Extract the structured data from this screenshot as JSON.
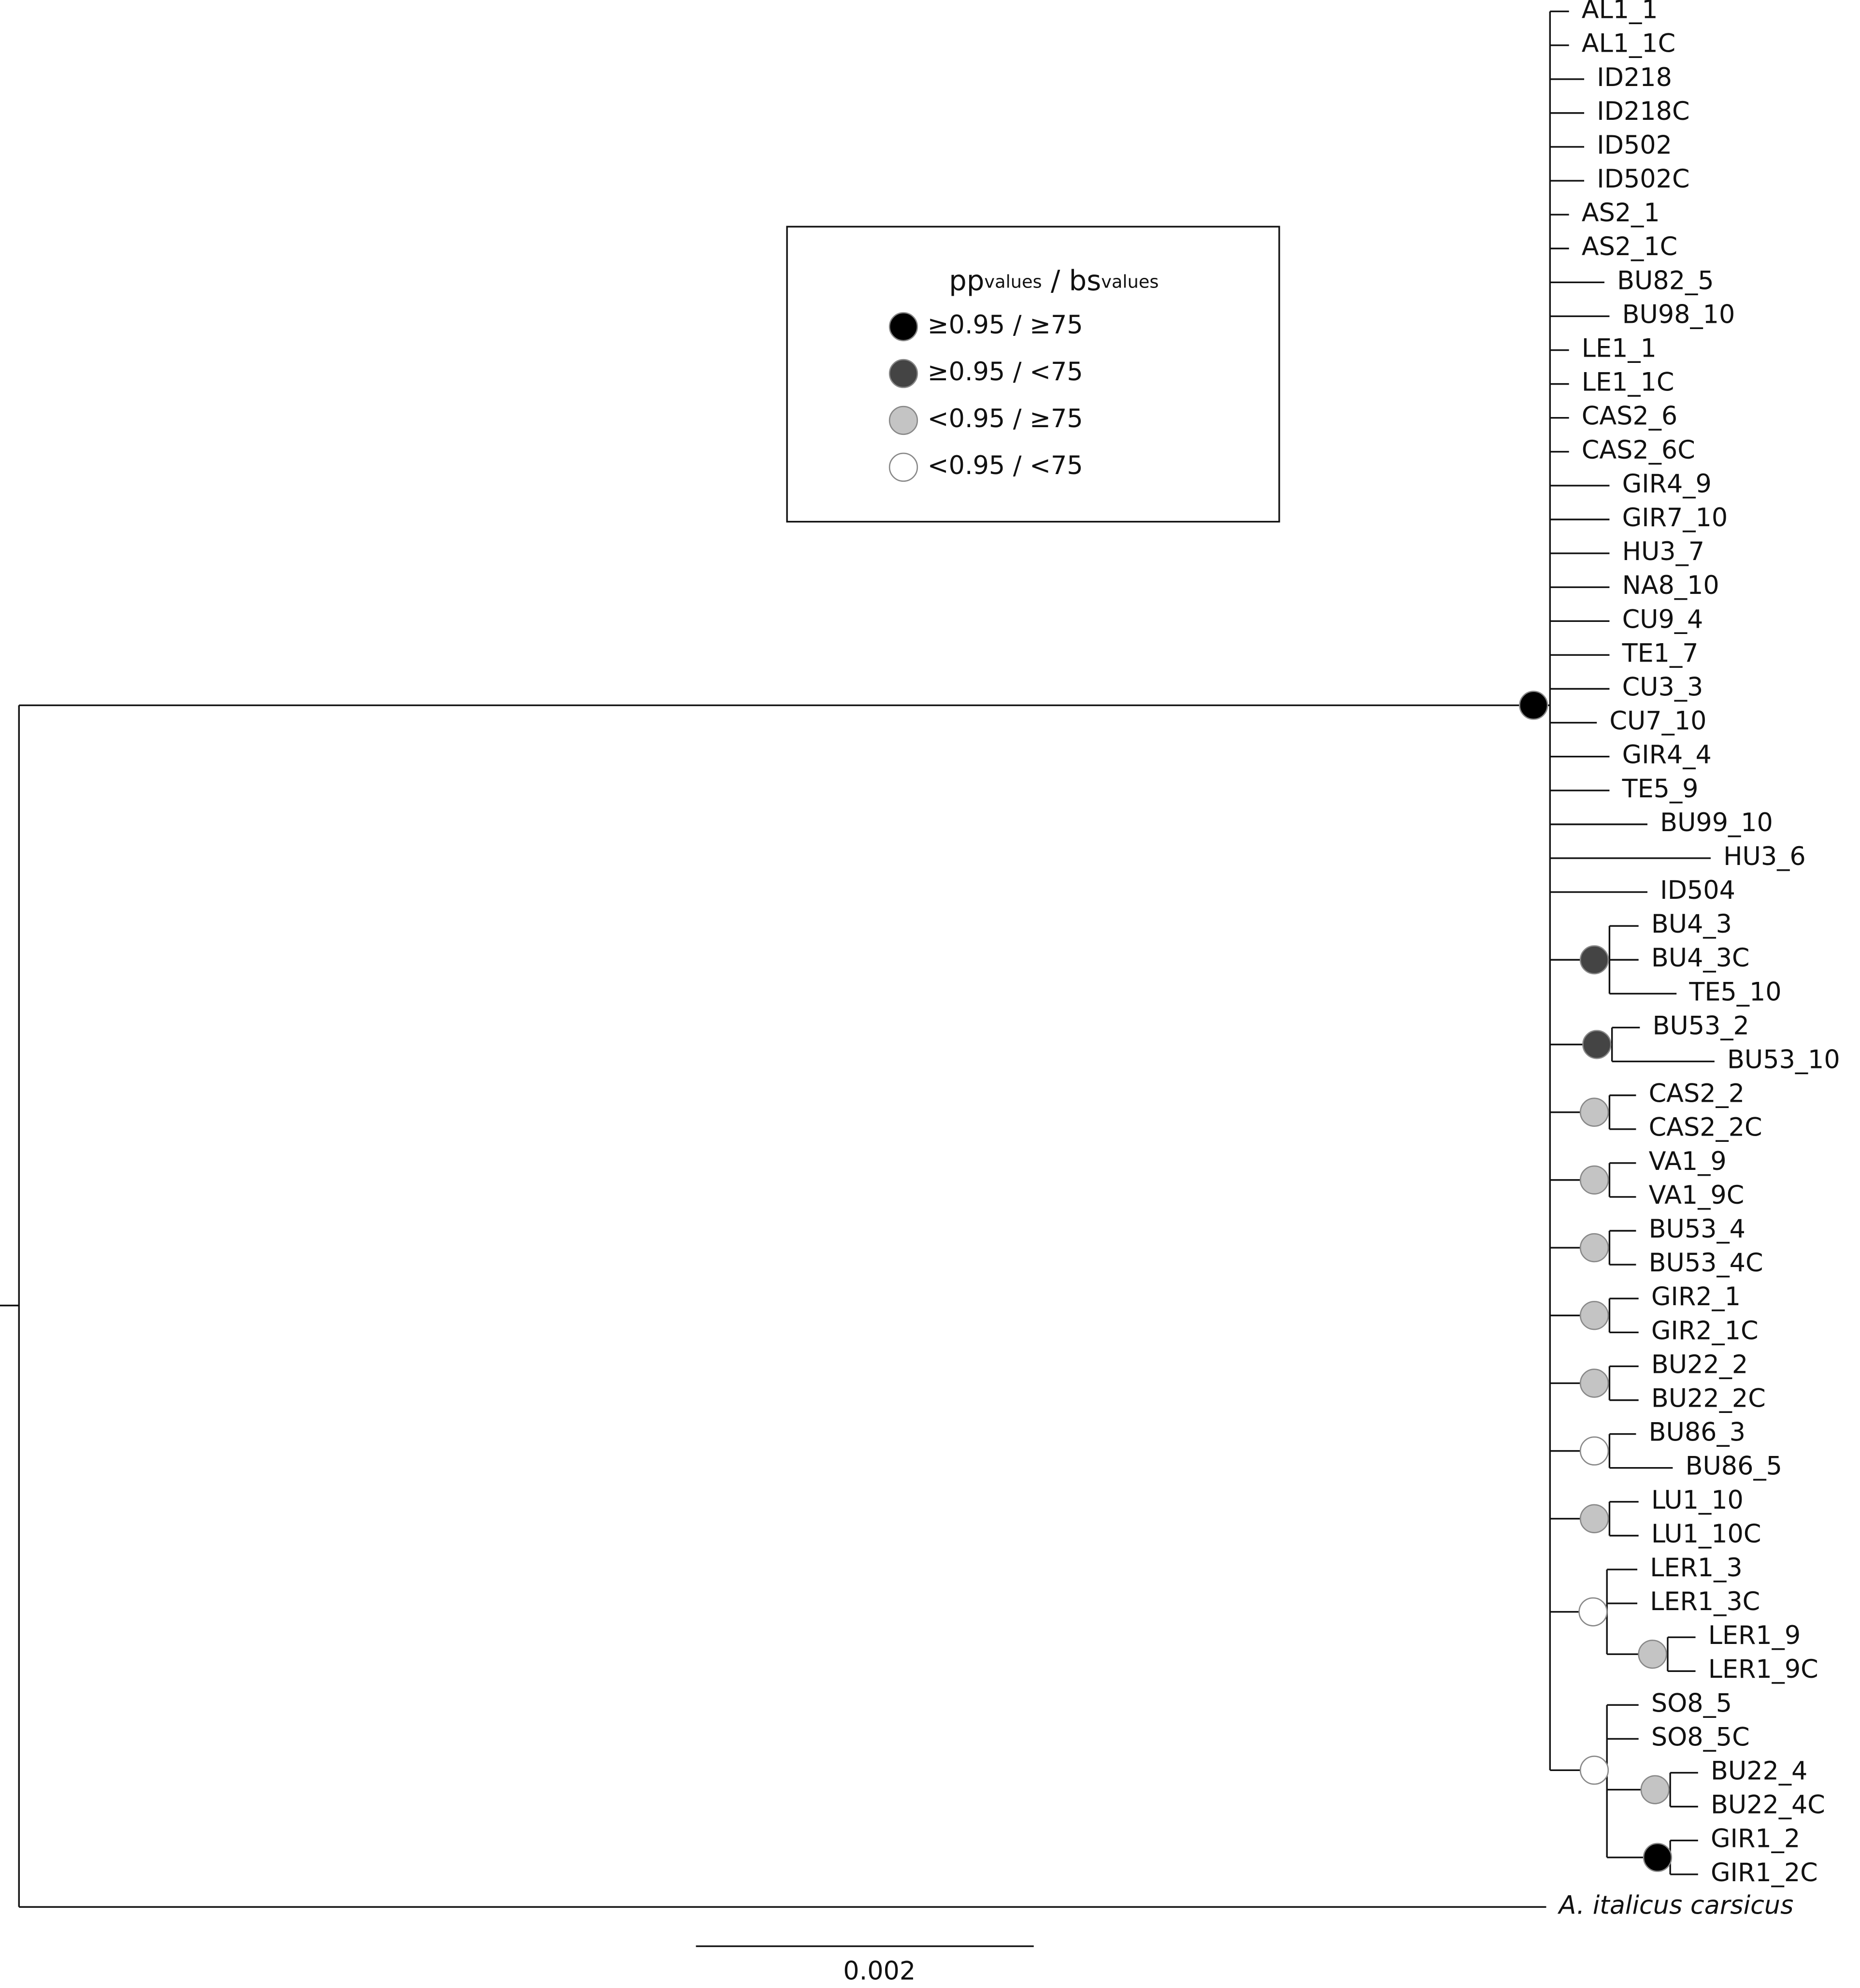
{
  "legend": {
    "header": [
      "pp",
      "values",
      " / bs",
      "values"
    ],
    "rows": [
      "≥0.95  /  ≥75",
      "≥0.95  /  <75",
      "<0.95  /  ≥75",
      "<0.95  /  <75"
    ]
  },
  "leaves": [
    "AL1_1",
    "AL1_1C",
    "ID218",
    "ID218C",
    "ID502",
    "ID502C",
    "AS2_1",
    "AS2_1C",
    "BU82_5",
    "BU98_10",
    "LE1_1",
    "LE1_1C",
    "CAS2_6",
    "CAS2_6C",
    "GIR4_9",
    "GIR7_10",
    "HU3_7",
    "NA8_10",
    "CU9_4",
    "TE1_7",
    "CU3_3",
    "CU7_10",
    "GIR4_4",
    "TE5_9",
    "BU99_10",
    "HU3_6",
    "ID504",
    "BU4_3",
    "BU4_3C",
    "TE5_10",
    "BU53_2",
    "BU53_10",
    "CAS2_2",
    "CAS2_2C",
    "VA1_9",
    "VA1_9C",
    "BU53_4",
    "BU53_4C",
    "GIR2_1",
    "GIR2_1C",
    "BU22_2",
    "BU22_2C",
    "BU86_3",
    "BU86_5",
    "LU1_10",
    "LU1_10C",
    "LER1_3",
    "LER1_3C",
    "LER1_9",
    "LER1_9C",
    "SO8_5",
    "SO8_5C",
    "BU22_4",
    "BU22_4C",
    "GIR1_2",
    "GIR1_2C"
  ],
  "outgroup": "A. italicus carsicus",
  "scale_bar": "0.002"
}
